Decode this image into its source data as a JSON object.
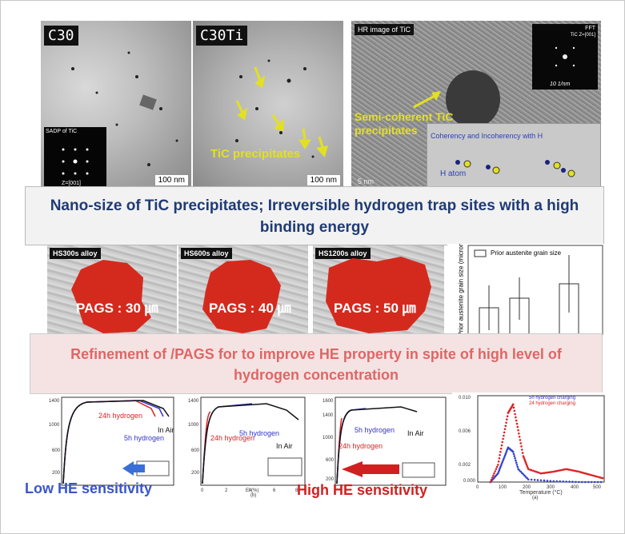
{
  "top": {
    "c30_label": "C30",
    "c30ti_label": "C30Ti",
    "sadp_label": "SADP of TiC",
    "zone_label": "Z=[001]",
    "scale_100nm_1": "100 nm",
    "scale_100nm_2": "100 nm",
    "tic_precip": "TiC precipitates",
    "hr_label": "HR image of TiC",
    "fft_label": "FFT",
    "fft_sub": "TiC Z=[001]",
    "fft_scale": "10 1/nm",
    "semi_coherent": "Semi-coherent TiC precipitates",
    "coherency_text": "Coherency and Incoherency with H",
    "h_atom": "H atom",
    "hr_scale": "5 nm"
  },
  "banner1": "Nano-size of TiC precipitates; Irreversible hydrogen trap sites with a high binding energy",
  "middle": {
    "panels": [
      {
        "alloy": "HS300s alloy",
        "pags": "PAGS : 30 ㎛"
      },
      {
        "alloy": "HS600s alloy",
        "pags": "PAGS : 40 ㎛"
      },
      {
        "alloy": "HS1200s alloy",
        "pags": "PAGS : 50 ㎛"
      }
    ],
    "bar_legend": "Prior austenite grain size",
    "bar_ylabel": "Prior austenite grain size (micrometer)"
  },
  "banner2": "Refinement of /PAGS for to improve HE property in spite of high level of hydrogen concentration",
  "bottom": {
    "plot1": {
      "label_24h": "24h hydrogen",
      "label_5h": "5h hydrogen",
      "label_air": "In Air",
      "ylabel": "Stress (MPa)"
    },
    "plot2": {
      "label_24h": "24h hydrogen",
      "label_5h": "5h hydrogen",
      "label_air": "In Air",
      "ylabel": "Stress (MPa)",
      "xlabel": "El (%)",
      "caption": "(b)"
    },
    "plot3": {
      "label_24h": "24h hydrogen",
      "label_5h": "5h hydrogen",
      "label_air": "In Air",
      "ylabel": "Stress (MPa)"
    },
    "plot4": {
      "legend1": "5h hydrogen charging",
      "legend2": "24 hydrogen charging",
      "ylabel": "Hydrogen desorption rate (ppm/s)",
      "xlabel": "Temperature (°C)",
      "caption": "(a)"
    },
    "low_he": "Low HE sensitivity",
    "high_he": "High HE sensitivity"
  },
  "colors": {
    "banner1_text": "#1f3b73",
    "banner2_text": "#e06666",
    "low_he": "#3a56c9",
    "high_he": "#d12020",
    "grain_red": "#d42a1e"
  },
  "chart_data": [
    {
      "type": "line",
      "series": [
        {
          "name": "24h hydrogen",
          "x": [
            0,
            1,
            2,
            4,
            6,
            8
          ],
          "y": [
            0,
            1300,
            1440,
            1470,
            1400,
            1000
          ]
        },
        {
          "name": "5h hydrogen",
          "x": [
            0,
            1,
            2,
            4,
            6,
            8.5
          ],
          "y": [
            0,
            1300,
            1440,
            1470,
            1420,
            1200
          ]
        },
        {
          "name": "In Air",
          "x": [
            0,
            1,
            2,
            4,
            6,
            9
          ],
          "y": [
            0,
            1300,
            1440,
            1470,
            1440,
            1150
          ]
        }
      ],
      "ylabel": "Stress (MPa)",
      "ylim": [
        0,
        1400
      ],
      "yticks": [
        0,
        200,
        400,
        600,
        800,
        1000,
        1200,
        1400
      ]
    },
    {
      "type": "line",
      "series": [
        {
          "name": "24h hydrogen",
          "x": [
            0,
            0.5,
            1.2
          ],
          "y": [
            0,
            1100,
            1250
          ]
        },
        {
          "name": "5h hydrogen",
          "x": [
            0,
            0.5,
            2,
            4.5
          ],
          "y": [
            0,
            1100,
            1380,
            1400
          ]
        },
        {
          "name": "In Air",
          "x": [
            0,
            0.5,
            2,
            4,
            6,
            8.3
          ],
          "y": [
            0,
            1100,
            1380,
            1420,
            1380,
            1150
          ]
        }
      ],
      "xlabel": "El (%)",
      "ylabel": "Stress (MPa)",
      "ylim": [
        0,
        1400
      ],
      "xlim": [
        0,
        9
      ],
      "xticks": [
        0,
        2,
        4,
        6,
        8
      ],
      "yticks": [
        0,
        200,
        400,
        600,
        800,
        1000,
        1200,
        1400
      ]
    },
    {
      "type": "line",
      "series": [
        {
          "name": "24h hydrogen",
          "x": [
            0,
            0.5,
            1
          ],
          "y": [
            0,
            1000,
            1200
          ]
        },
        {
          "name": "5h hydrogen",
          "x": [
            0,
            0.5,
            2,
            4
          ],
          "y": [
            0,
            1000,
            1400,
            1420
          ]
        },
        {
          "name": "In Air",
          "x": [
            0,
            0.5,
            2,
            4,
            6,
            8
          ],
          "y": [
            0,
            1000,
            1400,
            1440,
            1420,
            1250
          ]
        }
      ],
      "ylabel": "Stress (MPa)",
      "ylim": [
        0,
        1600
      ],
      "yticks": [
        0,
        200,
        400,
        600,
        800,
        1000,
        1200,
        1400,
        1600
      ]
    },
    {
      "type": "scatter",
      "series": [
        {
          "name": "5h hydrogen charging",
          "x": [
            50,
            80,
            100,
            120,
            140,
            160,
            200,
            300,
            400,
            500
          ],
          "y": [
            0,
            0.001,
            0.0025,
            0.004,
            0.0035,
            0.0015,
            0.0003,
            0.0001,
            0,
            0
          ]
        },
        {
          "name": "24 hydrogen charging",
          "x": [
            50,
            80,
            100,
            120,
            140,
            160,
            180,
            200,
            250,
            300,
            350,
            400,
            450,
            500
          ],
          "y": [
            0,
            0.002,
            0.005,
            0.008,
            0.009,
            0.006,
            0.003,
            0.0015,
            0.001,
            0.0012,
            0.0015,
            0.0012,
            0.0008,
            0.0004
          ]
        }
      ],
      "xlabel": "Temperature (°C)",
      "ylabel": "Hydrogen desorption rate (ppm/s)",
      "xlim": [
        0,
        500
      ],
      "ylim": [
        0,
        0.01
      ],
      "xticks": [
        0,
        100,
        200,
        300,
        400,
        500
      ],
      "yticks": [
        0,
        0.002,
        0.004,
        0.006,
        0.008,
        0.01
      ]
    }
  ]
}
